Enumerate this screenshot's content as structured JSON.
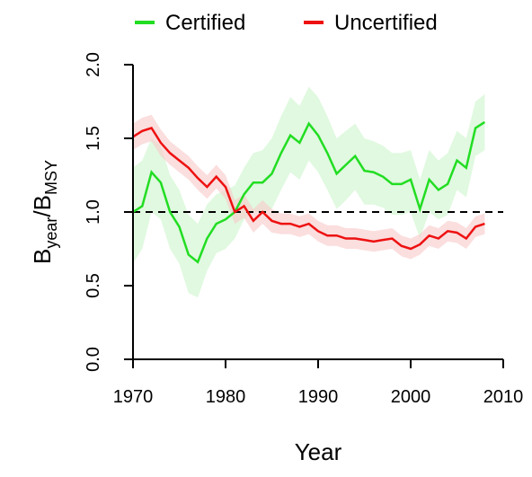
{
  "chart_data": {
    "type": "line",
    "xlabel": "Year",
    "ylabel": {
      "base1": "B",
      "sub1": "year",
      "sep": "/",
      "base2": "B",
      "sub2": "MSY"
    },
    "x": [
      1970,
      1971,
      1972,
      1973,
      1974,
      1975,
      1976,
      1977,
      1978,
      1979,
      1980,
      1981,
      1982,
      1983,
      1984,
      1985,
      1986,
      1987,
      1988,
      1989,
      1990,
      1991,
      1992,
      1993,
      1994,
      1995,
      1996,
      1997,
      1998,
      1999,
      2000,
      2001,
      2002,
      2003,
      2004,
      2005,
      2006,
      2007,
      2008
    ],
    "series": [
      {
        "name": "Certified",
        "color": "#22dd22",
        "band_color": "#ccf5cc",
        "values": [
          1.0,
          1.04,
          1.27,
          1.2,
          1.0,
          0.9,
          0.71,
          0.66,
          0.82,
          0.92,
          0.95,
          1.0,
          1.12,
          1.2,
          1.2,
          1.26,
          1.4,
          1.52,
          1.47,
          1.6,
          1.52,
          1.4,
          1.26,
          1.32,
          1.38,
          1.28,
          1.27,
          1.24,
          1.19,
          1.19,
          1.22,
          1.02,
          1.22,
          1.15,
          1.19,
          1.35,
          1.3,
          1.57,
          1.61
        ],
        "upper": [
          1.3,
          1.35,
          1.5,
          1.45,
          1.25,
          1.15,
          0.98,
          0.92,
          1.05,
          1.12,
          1.15,
          1.18,
          1.3,
          1.4,
          1.42,
          1.5,
          1.65,
          1.78,
          1.72,
          1.85,
          1.78,
          1.65,
          1.5,
          1.55,
          1.6,
          1.5,
          1.48,
          1.45,
          1.4,
          1.4,
          1.42,
          1.22,
          1.42,
          1.35,
          1.4,
          1.55,
          1.5,
          1.75,
          1.8
        ],
        "lower": [
          0.65,
          0.75,
          1.0,
          0.95,
          0.75,
          0.65,
          0.45,
          0.42,
          0.6,
          0.72,
          0.75,
          0.82,
          0.95,
          1.0,
          1.0,
          1.02,
          1.15,
          1.27,
          1.22,
          1.35,
          1.27,
          1.15,
          1.02,
          1.08,
          1.15,
          1.05,
          1.05,
          1.03,
          0.98,
          0.98,
          1.0,
          0.82,
          1.0,
          0.95,
          0.98,
          1.15,
          1.1,
          1.38,
          1.42
        ]
      },
      {
        "name": "Uncertified",
        "color": "#ee1111",
        "band_color": "#f9c8c8",
        "values": [
          1.51,
          1.55,
          1.57,
          1.47,
          1.4,
          1.35,
          1.3,
          1.23,
          1.17,
          1.24,
          1.17,
          1.0,
          1.04,
          0.94,
          1.0,
          0.94,
          0.92,
          0.92,
          0.9,
          0.92,
          0.87,
          0.84,
          0.84,
          0.82,
          0.82,
          0.81,
          0.8,
          0.81,
          0.82,
          0.77,
          0.75,
          0.78,
          0.84,
          0.82,
          0.87,
          0.86,
          0.82,
          0.9,
          0.92
        ],
        "upper": [
          1.6,
          1.64,
          1.66,
          1.56,
          1.48,
          1.43,
          1.38,
          1.31,
          1.25,
          1.32,
          1.25,
          1.08,
          1.12,
          1.02,
          1.08,
          1.02,
          0.99,
          0.99,
          0.97,
          0.99,
          0.94,
          0.91,
          0.91,
          0.89,
          0.89,
          0.88,
          0.87,
          0.88,
          0.89,
          0.84,
          0.82,
          0.85,
          0.91,
          0.89,
          0.94,
          0.93,
          0.89,
          0.97,
          0.99
        ],
        "lower": [
          1.42,
          1.46,
          1.48,
          1.38,
          1.32,
          1.27,
          1.22,
          1.15,
          1.09,
          1.16,
          1.09,
          0.92,
          0.96,
          0.86,
          0.92,
          0.86,
          0.85,
          0.85,
          0.83,
          0.85,
          0.8,
          0.77,
          0.77,
          0.75,
          0.75,
          0.74,
          0.73,
          0.74,
          0.75,
          0.7,
          0.68,
          0.71,
          0.77,
          0.75,
          0.8,
          0.79,
          0.75,
          0.83,
          0.85
        ]
      }
    ],
    "reference_line": 1,
    "xlim": [
      1970,
      2010
    ],
    "xticks": [
      1970,
      1980,
      1990,
      2000,
      2010
    ],
    "ylim": [
      0,
      2
    ],
    "yticks": [
      {
        "value": 0,
        "label": "0.0"
      },
      {
        "value": 0.5,
        "label": "0.5"
      },
      {
        "value": 1,
        "label": "1.0"
      },
      {
        "value": 1.5,
        "label": "1.5"
      },
      {
        "value": 2,
        "label": "2.0"
      }
    ],
    "legend": "top"
  }
}
